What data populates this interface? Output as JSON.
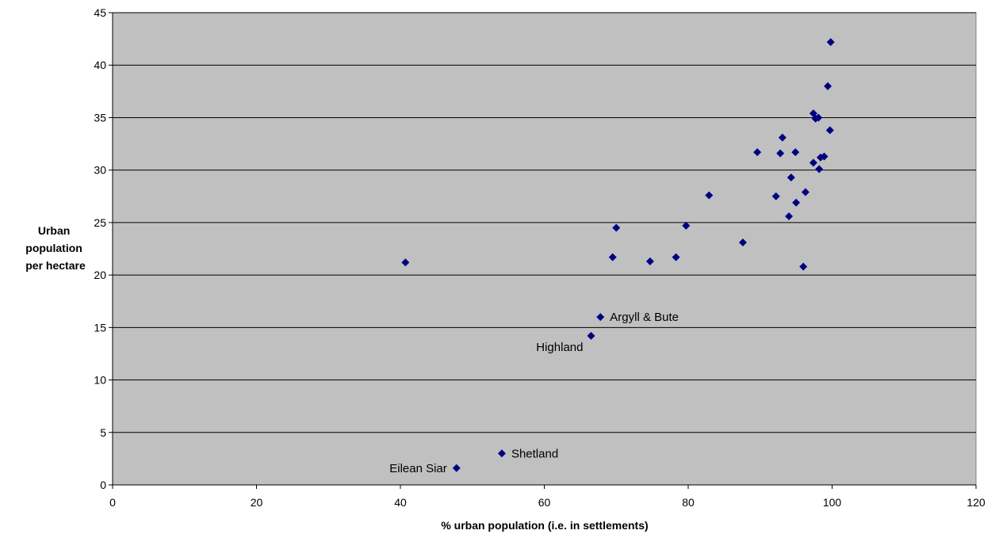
{
  "chart_data": {
    "type": "scatter",
    "title": "",
    "xlabel": "% urban population (i.e. in settlements)",
    "ylabel_lines": [
      "Urban",
      "population",
      "per hectare"
    ],
    "xlim": [
      0,
      120
    ],
    "ylim": [
      0,
      45
    ],
    "x_ticks": [
      "0",
      "20",
      "40",
      "60",
      "80",
      "100",
      "120"
    ],
    "y_ticks": [
      "0",
      "5",
      "10",
      "15",
      "20",
      "25",
      "30",
      "35",
      "40",
      "45"
    ],
    "grid": "horizontal",
    "colors": {
      "plot_bg": "#c0c0c0",
      "marker": "#000080",
      "grid": "#000000"
    },
    "series": [
      {
        "points": [
          {
            "x": 40.7,
            "y": 21.2
          },
          {
            "x": 47.8,
            "y": 1.6
          },
          {
            "x": 54.1,
            "y": 3.0
          },
          {
            "x": 66.5,
            "y": 14.2
          },
          {
            "x": 67.8,
            "y": 16.0
          },
          {
            "x": 69.5,
            "y": 21.7
          },
          {
            "x": 70.0,
            "y": 24.5
          },
          {
            "x": 74.7,
            "y": 21.3
          },
          {
            "x": 78.3,
            "y": 21.7
          },
          {
            "x": 79.7,
            "y": 24.7
          },
          {
            "x": 82.9,
            "y": 27.6
          },
          {
            "x": 87.6,
            "y": 23.1
          },
          {
            "x": 89.6,
            "y": 31.7
          },
          {
            "x": 92.2,
            "y": 27.5
          },
          {
            "x": 92.8,
            "y": 31.6
          },
          {
            "x": 93.1,
            "y": 33.1
          },
          {
            "x": 94.0,
            "y": 25.6
          },
          {
            "x": 94.3,
            "y": 29.3
          },
          {
            "x": 94.9,
            "y": 31.7
          },
          {
            "x": 95.0,
            "y": 26.9
          },
          {
            "x": 96.0,
            "y": 20.8
          },
          {
            "x": 96.3,
            "y": 27.9
          },
          {
            "x": 97.4,
            "y": 35.4
          },
          {
            "x": 97.4,
            "y": 30.7
          },
          {
            "x": 97.7,
            "y": 34.9
          },
          {
            "x": 98.1,
            "y": 35.0
          },
          {
            "x": 98.2,
            "y": 30.1
          },
          {
            "x": 98.4,
            "y": 31.2
          },
          {
            "x": 98.9,
            "y": 31.3
          },
          {
            "x": 99.4,
            "y": 38.0
          },
          {
            "x": 99.7,
            "y": 33.8
          },
          {
            "x": 99.8,
            "y": 42.2
          }
        ]
      }
    ],
    "annotations": [
      {
        "label": "Argyll & Bute",
        "x": 67.8,
        "y": 16.0,
        "side": "right"
      },
      {
        "label": "Highland",
        "x": 66.5,
        "y": 14.2,
        "side": "below-left"
      },
      {
        "label": "Shetland",
        "x": 54.1,
        "y": 3.0,
        "side": "right"
      },
      {
        "label": "Eilean Siar",
        "x": 47.8,
        "y": 1.6,
        "side": "left"
      }
    ]
  }
}
